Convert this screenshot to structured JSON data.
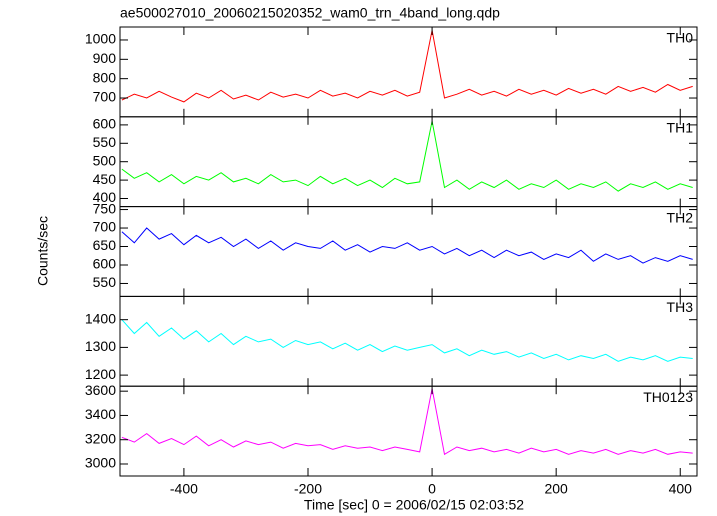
{
  "chart_data": {
    "type": "line",
    "title": "ae500027010_20060215020352_wam0_trn_4band_long.qdp",
    "xlabel": "Time [sec] 0 = 2006/02/15 02:03:52",
    "ylabel": "Counts/sec",
    "x": [
      -500,
      -480,
      -460,
      -440,
      -420,
      -400,
      -380,
      -360,
      -340,
      -320,
      -300,
      -280,
      -260,
      -240,
      -220,
      -200,
      -180,
      -160,
      -140,
      -120,
      -100,
      -80,
      -60,
      -40,
      -20,
      0,
      20,
      40,
      60,
      80,
      100,
      120,
      140,
      160,
      180,
      200,
      220,
      240,
      260,
      280,
      300,
      320,
      340,
      360,
      380,
      400,
      420
    ],
    "xlim": [
      -503,
      427
    ],
    "xticks": [
      -400,
      -200,
      0,
      200,
      400
    ],
    "series": [
      {
        "name": "TH0",
        "color": "#ff0000",
        "ylim": [
          603,
          1067
        ],
        "yticks": [
          700,
          800,
          900,
          1000
        ],
        "values": [
          690,
          720,
          700,
          735,
          705,
          680,
          725,
          700,
          740,
          695,
          715,
          690,
          730,
          705,
          720,
          700,
          740,
          710,
          725,
          700,
          735,
          715,
          740,
          710,
          730,
          1050,
          700,
          720,
          745,
          715,
          735,
          710,
          745,
          720,
          740,
          715,
          750,
          725,
          745,
          720,
          760,
          735,
          755,
          730,
          770,
          740,
          760
        ]
      },
      {
        "name": "TH1",
        "color": "#00ff00",
        "ylim": [
          378,
          622
        ],
        "yticks": [
          400,
          450,
          500,
          550,
          600
        ],
        "values": [
          480,
          455,
          470,
          445,
          465,
          440,
          460,
          450,
          470,
          445,
          455,
          440,
          465,
          445,
          450,
          435,
          460,
          440,
          455,
          435,
          450,
          430,
          455,
          440,
          445,
          610,
          430,
          450,
          425,
          445,
          430,
          450,
          425,
          440,
          430,
          450,
          425,
          440,
          430,
          445,
          420,
          440,
          430,
          445,
          425,
          440,
          430
        ]
      },
      {
        "name": "TH2",
        "color": "#0000ff",
        "ylim": [
          515,
          758
        ],
        "yticks": [
          550,
          600,
          650,
          700,
          750
        ],
        "values": [
          690,
          660,
          700,
          670,
          685,
          655,
          680,
          660,
          675,
          650,
          670,
          645,
          665,
          640,
          660,
          650,
          645,
          665,
          640,
          655,
          635,
          650,
          645,
          660,
          640,
          650,
          630,
          645,
          625,
          640,
          620,
          640,
          625,
          635,
          615,
          630,
          620,
          640,
          610,
          630,
          615,
          625,
          605,
          620,
          610,
          625,
          615
        ]
      },
      {
        "name": "TH3",
        "color": "#00ffff",
        "ylim": [
          1160,
          1484
        ],
        "yticks": [
          1200,
          1300,
          1400
        ],
        "values": [
          1400,
          1350,
          1390,
          1340,
          1370,
          1330,
          1360,
          1320,
          1350,
          1310,
          1340,
          1320,
          1330,
          1300,
          1325,
          1310,
          1320,
          1295,
          1315,
          1290,
          1310,
          1285,
          1305,
          1290,
          1300,
          1310,
          1280,
          1295,
          1270,
          1290,
          1275,
          1285,
          1265,
          1280,
          1260,
          1275,
          1255,
          1270,
          1260,
          1275,
          1250,
          1265,
          1255,
          1270,
          1250,
          1265,
          1260
        ]
      },
      {
        "name": "TH0123",
        "color": "#ff00ff",
        "ylim": [
          2901,
          3641
        ],
        "yticks": [
          3000,
          3200,
          3400,
          3600
        ],
        "values": [
          3220,
          3180,
          3250,
          3170,
          3210,
          3160,
          3230,
          3150,
          3200,
          3140,
          3190,
          3160,
          3180,
          3130,
          3170,
          3150,
          3160,
          3120,
          3150,
          3130,
          3140,
          3110,
          3140,
          3120,
          3100,
          3620,
          3080,
          3140,
          3110,
          3130,
          3100,
          3120,
          3090,
          3130,
          3100,
          3120,
          3080,
          3110,
          3090,
          3120,
          3080,
          3110,
          3090,
          3120,
          3080,
          3100,
          3090
        ]
      }
    ]
  }
}
